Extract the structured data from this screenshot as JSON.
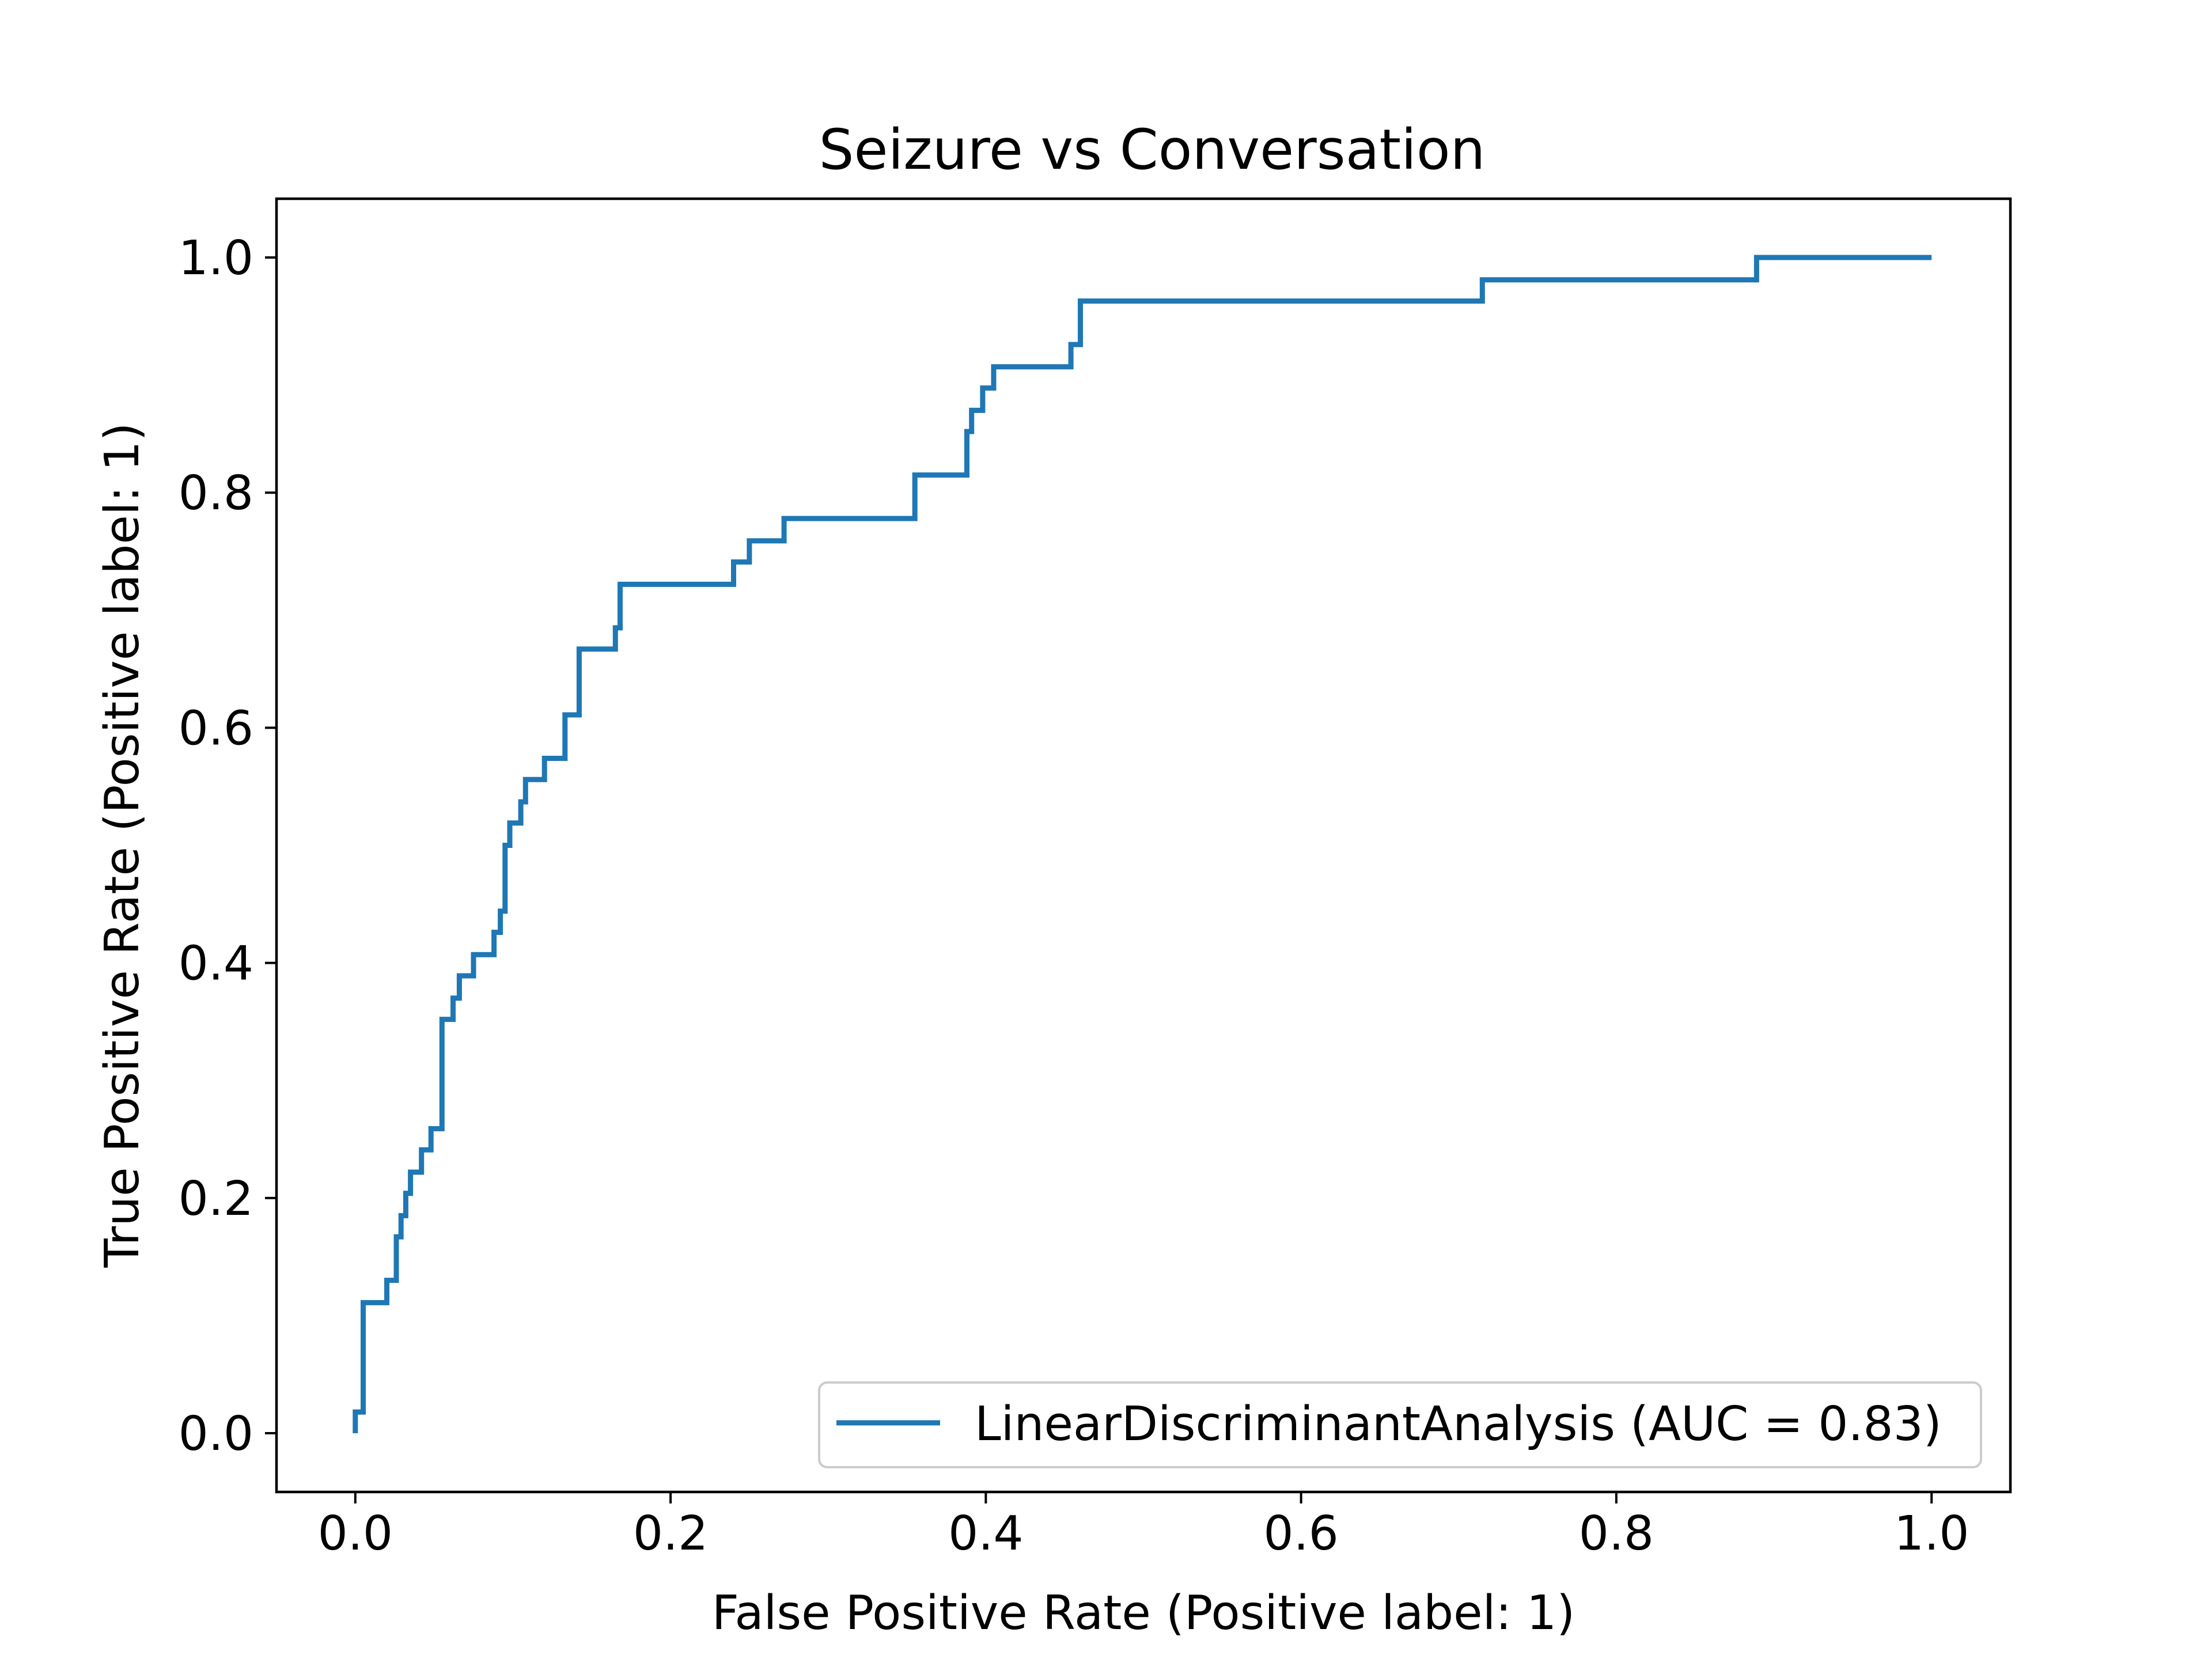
{
  "chart_data": {
    "type": "line",
    "title": "Seizure vs Conversation",
    "xlabel": "False Positive Rate (Positive label: 1)",
    "ylabel": "True Positive Rate (Positive label: 1)",
    "xlim": [
      -0.05,
      1.05
    ],
    "ylim": [
      -0.05,
      1.05
    ],
    "xticks": [
      "0.0",
      "0.2",
      "0.4",
      "0.6",
      "0.8",
      "1.0"
    ],
    "yticks": [
      "0.0",
      "0.2",
      "0.4",
      "0.6",
      "0.8",
      "1.0"
    ],
    "grid": false,
    "legend": {
      "position": "bottom-right"
    },
    "series": [
      {
        "name": "LinearDiscriminantAnalysis (AUC = 0.83)",
        "color": "#1f77b4",
        "x": [
          0.0,
          0.0,
          0.002,
          0.002,
          0.005,
          0.005,
          0.02,
          0.02,
          0.026,
          0.026,
          0.029,
          0.029,
          0.032,
          0.032,
          0.035,
          0.035,
          0.042,
          0.042,
          0.048,
          0.048,
          0.055,
          0.055,
          0.062,
          0.062,
          0.066,
          0.066,
          0.075,
          0.075,
          0.088,
          0.088,
          0.092,
          0.092,
          0.095,
          0.095,
          0.098,
          0.098,
          0.105,
          0.105,
          0.108,
          0.108,
          0.12,
          0.12,
          0.133,
          0.133,
          0.142,
          0.142,
          0.165,
          0.165,
          0.168,
          0.168,
          0.24,
          0.24,
          0.25,
          0.25,
          0.272,
          0.272,
          0.355,
          0.355,
          0.388,
          0.388,
          0.391,
          0.391,
          0.398,
          0.398,
          0.405,
          0.405,
          0.454,
          0.454,
          0.46,
          0.46,
          0.715,
          0.715,
          0.889,
          0.889,
          1.0
        ],
        "y": [
          0.0,
          0.018,
          0.018,
          0.018,
          0.018,
          0.111,
          0.111,
          0.13,
          0.13,
          0.167,
          0.167,
          0.185,
          0.185,
          0.204,
          0.204,
          0.222,
          0.222,
          0.241,
          0.241,
          0.259,
          0.259,
          0.352,
          0.352,
          0.37,
          0.37,
          0.389,
          0.389,
          0.407,
          0.407,
          0.426,
          0.426,
          0.444,
          0.444,
          0.5,
          0.5,
          0.519,
          0.519,
          0.537,
          0.537,
          0.556,
          0.556,
          0.574,
          0.574,
          0.611,
          0.611,
          0.667,
          0.667,
          0.685,
          0.685,
          0.722,
          0.722,
          0.741,
          0.741,
          0.759,
          0.759,
          0.778,
          0.778,
          0.815,
          0.815,
          0.852,
          0.852,
          0.87,
          0.87,
          0.889,
          0.889,
          0.907,
          0.907,
          0.926,
          0.926,
          0.963,
          0.963,
          0.981,
          0.981,
          1.0,
          1.0
        ]
      }
    ]
  }
}
